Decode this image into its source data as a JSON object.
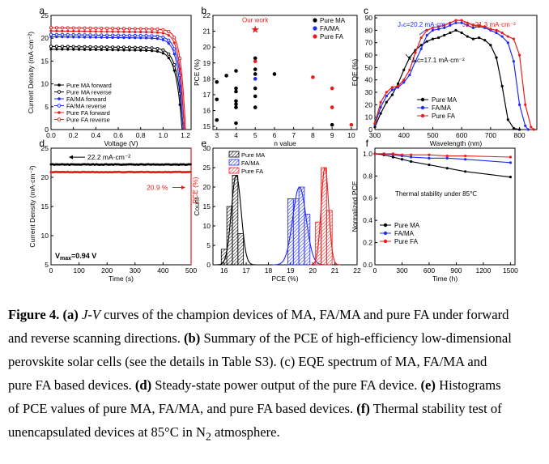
{
  "colors": {
    "ma": "#000000",
    "fama": "#1f2cf0",
    "fa": "#ea1c1c",
    "star": "#ea1c1c"
  },
  "panels": {
    "a": {
      "letter": "a",
      "xlabel": "Voltage (V)",
      "ylabel": "Current Density (mA·cm⁻²)",
      "xticks": [
        "0.0",
        "0.2",
        "0.4",
        "0.6",
        "0.8",
        "1.0",
        "1.2"
      ],
      "yticks": [
        "0",
        "5",
        "10",
        "15",
        "20",
        "25"
      ],
      "legend": [
        "Pure MA forward",
        "Pure MA reverse",
        "FA/MA forward",
        "FA/MA reverse",
        "Pure FA forward",
        "Pure FA reverse"
      ]
    },
    "b": {
      "letter": "b",
      "xlabel": "n value",
      "ylabel": "PCE (%)",
      "xticks": [
        "3",
        "4",
        "5",
        "6",
        "7",
        "8",
        "9",
        "10"
      ],
      "yticks": [
        "15",
        "16",
        "17",
        "18",
        "19",
        "20",
        "21",
        "22"
      ],
      "legend": [
        "Pure MA",
        "FA/MA",
        "Pure FA"
      ],
      "annotation": "Our work"
    },
    "c": {
      "letter": "c",
      "xlabel": "Wavelength (nm)",
      "ylabel": "EQE (%)",
      "xticks": [
        "300",
        "400",
        "500",
        "600",
        "700",
        "800"
      ],
      "yticks": [
        "0",
        "10",
        "20",
        "30",
        "40",
        "50",
        "60",
        "70",
        "80",
        "90"
      ],
      "legend": [
        "Pure MA",
        "FA/MA",
        "Pure FA"
      ],
      "jsc_fama": "Jₛᴄ=20.2 mA·cm⁻²",
      "jsc_fa": "Jₛᴄ=21.3 mA·cm⁻²",
      "jsc_ma": "Jₛᴄ=17.1 mA·cm⁻²"
    },
    "d": {
      "letter": "d",
      "xlabel": "Time (s)",
      "ylabel_left": "Current Density (mA·cm⁻²)",
      "ylabel_right": "PCE (%)",
      "xticks": [
        "0",
        "100",
        "200",
        "300",
        "400",
        "500"
      ],
      "yticks": [
        "5",
        "10",
        "15",
        "20",
        "25"
      ],
      "current_label": "22.2 mA·cm⁻²",
      "pce_label": "20.9 %",
      "vmax_label": "V",
      "vmax_sub": "max",
      "vmax_value": "=0.94 V"
    },
    "e": {
      "letter": "e",
      "xlabel": "PCE (%)",
      "ylabel": "Count",
      "xticks": [
        "16",
        "17",
        "18",
        "19",
        "20",
        "21",
        "22"
      ],
      "yticks": [
        "0",
        "5",
        "10",
        "15",
        "20",
        "25",
        "30"
      ],
      "legend": [
        "Pure MA",
        "FA/MA",
        "Pure FA"
      ]
    },
    "f": {
      "letter": "f",
      "xlabel": "Time (h)",
      "ylabel": "Normalized PCE",
      "xticks": [
        "0",
        "300",
        "600",
        "900",
        "1200",
        "1500"
      ],
      "yticks": [
        "0.0",
        "0.2",
        "0.4",
        "0.6",
        "0.8",
        "1.0"
      ],
      "legend": [
        "Pure MA",
        "FA/MA",
        "Pure FA"
      ],
      "annotation": "Thermal stability under 85℃"
    }
  },
  "chart_data": [
    {
      "panel": "a",
      "type": "line",
      "xlim": [
        0,
        1.25
      ],
      "ylim": [
        0,
        25
      ],
      "series": [
        {
          "name": "Pure MA forward",
          "color": "#000000",
          "jsc": 17.6,
          "voc": 1.17,
          "vk": 0.88,
          "d": 0.05,
          "slope": 0.3
        },
        {
          "name": "Pure MA reverse",
          "color": "#000000",
          "jsc": 18.2,
          "voc": 1.18,
          "vk": 0.93,
          "d": 0.05,
          "slope": 0.3
        },
        {
          "name": "FA/MA forward",
          "color": "#1f2cf0",
          "jsc": 20.3,
          "voc": 1.18,
          "vk": 0.94,
          "d": 0.045,
          "slope": 0.3
        },
        {
          "name": "FA/MA reverse",
          "color": "#1f2cf0",
          "jsc": 20.8,
          "voc": 1.19,
          "vk": 0.97,
          "d": 0.045,
          "slope": 0.3
        },
        {
          "name": "Pure FA forward",
          "color": "#ea1c1c",
          "jsc": 21.6,
          "voc": 1.19,
          "vk": 0.98,
          "d": 0.04,
          "slope": 0.3
        },
        {
          "name": "Pure FA reverse",
          "color": "#ea1c1c",
          "jsc": 22.3,
          "voc": 1.2,
          "vk": 1.0,
          "d": 0.04,
          "slope": 0.3
        }
      ]
    },
    {
      "panel": "b",
      "type": "scatter",
      "xlim": [
        3,
        10
      ],
      "ylim": [
        15,
        22
      ],
      "series": [
        {
          "name": "Pure MA",
          "color": "#000000",
          "points": [
            [
              3,
              15.4
            ],
            [
              3,
              16.7
            ],
            [
              3,
              17.8
            ],
            [
              3.5,
              18.2
            ],
            [
              4,
              16.2
            ],
            [
              4,
              16.4
            ],
            [
              4,
              16.6
            ],
            [
              4,
              17.2
            ],
            [
              4,
              17.4
            ],
            [
              4,
              18.5
            ],
            [
              4,
              15.2
            ],
            [
              5,
              16.2
            ],
            [
              5,
              16.9
            ],
            [
              5,
              17.4
            ],
            [
              5,
              18.3
            ],
            [
              5,
              18.6
            ],
            [
              5,
              19.3
            ],
            [
              6,
              18.3
            ],
            [
              9,
              15.1
            ]
          ]
        },
        {
          "name": "FA/MA",
          "color": "#1f2cf0",
          "points": [
            [
              5,
              18.0
            ]
          ]
        },
        {
          "name": "Pure FA",
          "color": "#ea1c1c",
          "points": [
            [
              5,
              19.1
            ],
            [
              8,
              18.1
            ],
            [
              9,
              17.4
            ],
            [
              9,
              16.2
            ],
            [
              10,
              15.1
            ]
          ]
        }
      ],
      "highlight": {
        "label": "Our work",
        "x": 5,
        "y": 21.1
      }
    },
    {
      "panel": "c",
      "type": "line",
      "xlim": [
        300,
        850
      ],
      "ylim": [
        0,
        90
      ],
      "series": [
        {
          "name": "Pure MA",
          "color": "#000000",
          "points": [
            [
              300,
              2
            ],
            [
              320,
              13
            ],
            [
              340,
              22
            ],
            [
              360,
              28
            ],
            [
              380,
              37
            ],
            [
              400,
              48
            ],
            [
              420,
              58
            ],
            [
              440,
              64
            ],
            [
              460,
              68
            ],
            [
              480,
              71
            ],
            [
              500,
              73
            ],
            [
              520,
              74
            ],
            [
              540,
              76
            ],
            [
              560,
              78
            ],
            [
              580,
              80
            ],
            [
              600,
              78
            ],
            [
              620,
              75
            ],
            [
              640,
              73
            ],
            [
              660,
              74
            ],
            [
              680,
              72
            ],
            [
              700,
              68
            ],
            [
              720,
              58
            ],
            [
              740,
              35
            ],
            [
              760,
              8
            ],
            [
              780,
              1
            ],
            [
              800,
              0
            ]
          ]
        },
        {
          "name": "FA/MA",
          "color": "#1f2cf0",
          "points": [
            [
              300,
              4
            ],
            [
              320,
              18
            ],
            [
              340,
              27
            ],
            [
              360,
              32
            ],
            [
              380,
              34
            ],
            [
              400,
              38
            ],
            [
              420,
              44
            ],
            [
              440,
              55
            ],
            [
              460,
              65
            ],
            [
              480,
              76
            ],
            [
              500,
              80
            ],
            [
              520,
              81
            ],
            [
              540,
              82
            ],
            [
              560,
              84
            ],
            [
              580,
              86
            ],
            [
              600,
              86
            ],
            [
              620,
              84
            ],
            [
              640,
              82
            ],
            [
              660,
              83
            ],
            [
              680,
              82
            ],
            [
              700,
              80
            ],
            [
              720,
              78
            ],
            [
              740,
              75
            ],
            [
              760,
              70
            ],
            [
              780,
              55
            ],
            [
              800,
              20
            ],
            [
              820,
              3
            ],
            [
              830,
              0
            ]
          ]
        },
        {
          "name": "Pure FA",
          "color": "#ea1c1c",
          "points": [
            [
              300,
              5
            ],
            [
              320,
              22
            ],
            [
              340,
              30
            ],
            [
              360,
              34
            ],
            [
              380,
              35
            ],
            [
              400,
              40
            ],
            [
              420,
              48
            ],
            [
              440,
              62
            ],
            [
              460,
              74
            ],
            [
              480,
              80
            ],
            [
              500,
              82
            ],
            [
              520,
              83
            ],
            [
              540,
              84
            ],
            [
              560,
              86
            ],
            [
              580,
              88
            ],
            [
              600,
              88
            ],
            [
              620,
              86
            ],
            [
              640,
              84
            ],
            [
              660,
              84
            ],
            [
              680,
              83
            ],
            [
              700,
              81
            ],
            [
              720,
              80
            ],
            [
              740,
              78
            ],
            [
              760,
              75
            ],
            [
              780,
              73
            ],
            [
              800,
              60
            ],
            [
              820,
              20
            ],
            [
              840,
              2
            ],
            [
              850,
              0
            ]
          ]
        }
      ]
    },
    {
      "panel": "d",
      "type": "line",
      "xlim": [
        0,
        500
      ],
      "ylim": [
        5,
        25
      ],
      "series": [
        {
          "name": "Current density",
          "color": "#000000",
          "y": 22.2
        },
        {
          "name": "PCE",
          "color": "#ea1c1c",
          "y": 20.9
        }
      ]
    },
    {
      "panel": "e",
      "type": "bar",
      "xlim": [
        15.5,
        22
      ],
      "ylim": [
        0,
        30
      ],
      "bin_width": 0.25,
      "series": [
        {
          "name": "Pure MA",
          "color": "#000000",
          "bins": [
            [
              16.0,
              4
            ],
            [
              16.25,
              15
            ],
            [
              16.5,
              23
            ],
            [
              16.75,
              8
            ]
          ],
          "mu": 16.55,
          "sigma": 0.22
        },
        {
          "name": "FA/MA",
          "color": "#1f2cf0",
          "bins": [
            [
              19.0,
              17
            ],
            [
              19.25,
              17
            ],
            [
              19.5,
              20
            ],
            [
              19.75,
              13
            ]
          ],
          "mu": 19.4,
          "sigma": 0.3
        },
        {
          "name": "Pure FA",
          "color": "#ea1c1c",
          "bins": [
            [
              20.25,
              11
            ],
            [
              20.5,
              25
            ],
            [
              20.75,
              14
            ]
          ],
          "mu": 20.55,
          "sigma": 0.17
        }
      ]
    },
    {
      "panel": "f",
      "type": "line",
      "xlim": [
        0,
        1500
      ],
      "ylim": [
        0,
        1.05
      ],
      "series": [
        {
          "name": "Pure MA",
          "color": "#000000",
          "points": [
            [
              0,
              1.0
            ],
            [
              100,
              0.99
            ],
            [
              200,
              0.97
            ],
            [
              300,
              0.95
            ],
            [
              400,
              0.93
            ],
            [
              600,
              0.9
            ],
            [
              800,
              0.87
            ],
            [
              1000,
              0.84
            ],
            [
              1500,
              0.79
            ]
          ]
        },
        {
          "name": "FA/MA",
          "color": "#1f2cf0",
          "points": [
            [
              0,
              1.0
            ],
            [
              100,
              1.0
            ],
            [
              200,
              0.99
            ],
            [
              300,
              0.98
            ],
            [
              400,
              0.97
            ],
            [
              600,
              0.96
            ],
            [
              800,
              0.96
            ],
            [
              1000,
              0.95
            ],
            [
              1500,
              0.92
            ]
          ]
        },
        {
          "name": "Pure FA",
          "color": "#ea1c1c",
          "points": [
            [
              0,
              1.0
            ],
            [
              100,
              1.0
            ],
            [
              200,
              1.0
            ],
            [
              300,
              0.99
            ],
            [
              400,
              0.99
            ],
            [
              600,
              0.99
            ],
            [
              800,
              0.98
            ],
            [
              1000,
              0.98
            ],
            [
              1500,
              0.97
            ]
          ]
        }
      ]
    }
  ],
  "caption": {
    "lines": [
      [
        [
          "b",
          "Figure 4. (a) "
        ],
        [
          "i",
          "J-V"
        ],
        [
          "t",
          " curves of the champion devices of MA, FA/MA and pure FA under forward"
        ]
      ],
      [
        [
          "t",
          "and reverse scanning directions. "
        ],
        [
          "b",
          "(b)"
        ],
        [
          "t",
          " Summary of the PCE of high-efficiency low-dimensional"
        ]
      ],
      [
        [
          "t",
          "perovskite solar cells (see the details in Table S3). (c) EQE spectrum of MA, FA/MA and"
        ]
      ],
      [
        [
          "t",
          "pure FA based devices. "
        ],
        [
          "b",
          "(d)"
        ],
        [
          "t",
          " Steady-state power output of the pure FA device. "
        ],
        [
          "b",
          "(e)"
        ],
        [
          "t",
          " Histograms"
        ]
      ],
      [
        [
          "t",
          "of PCE values of pure MA, FA/MA, and pure FA based devices. "
        ],
        [
          "b",
          "(f)"
        ],
        [
          "t",
          " Thermal stability test of"
        ]
      ],
      [
        [
          "t",
          "unencapsulated devices at 85°C in N"
        ],
        [
          "s",
          "2"
        ],
        [
          "t",
          " atmosphere."
        ]
      ]
    ]
  }
}
